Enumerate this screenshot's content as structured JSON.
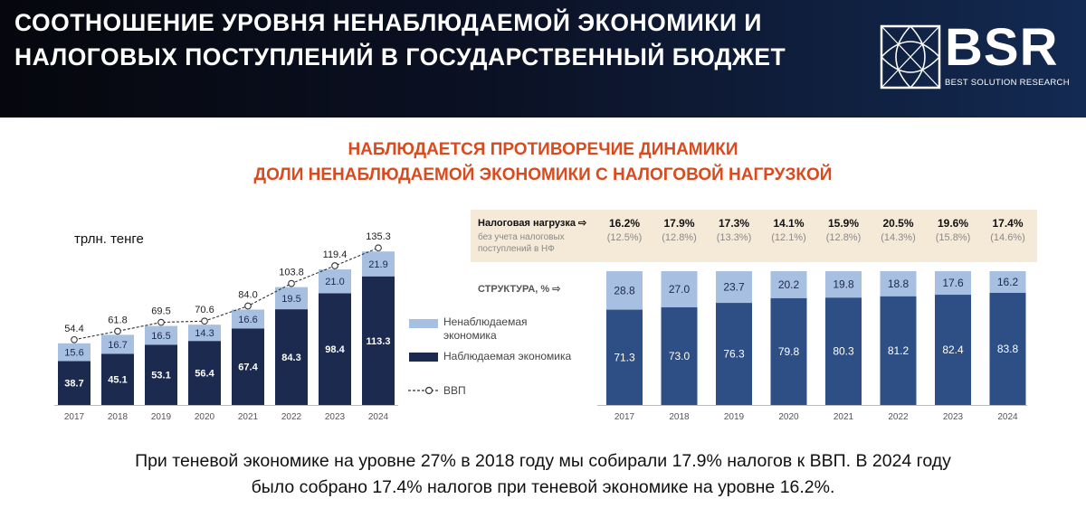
{
  "header": {
    "title": "СООТНОШЕНИЕ УРОВНЯ НЕНАБЛЮДАЕМОЙ ЭКОНОМИКИ И НАЛОГОВЫХ ПОСТУПЛЕНИЙ В ГОСУДАРСТВЕННЫЙ БЮДЖЕТ",
    "logo_text": "BSR",
    "logo_sub": "BEST SOLUTION RESEARCH"
  },
  "subtitle": {
    "line1": "НАБЛЮДАЕТСЯ ПРОТИВОРЕЧИЕ ДИНАМИКИ",
    "line2": "ДОЛИ НЕНАБЛЮДАЕМОЙ ЭКОНОМИКИ С НАЛОГОВОЙ НАГРУЗКОЙ"
  },
  "colors": {
    "dark": "#1b2a4e",
    "light": "#a7bfe0",
    "structure_dark": "#2e4f86",
    "accent": "#d94a1e"
  },
  "chart_data": [
    {
      "type": "bar",
      "units": "трлн. тенге",
      "categories": [
        "2017",
        "2018",
        "2019",
        "2020",
        "2021",
        "2022",
        "2023",
        "2024"
      ],
      "series": [
        {
          "name": "Наблюдаемая экономика",
          "values": [
            38.7,
            45.1,
            53.1,
            56.4,
            67.4,
            84.3,
            98.4,
            113.3
          ]
        },
        {
          "name": "Ненаблюдаемая экономика",
          "values": [
            15.6,
            16.7,
            16.5,
            14.3,
            16.6,
            19.5,
            21.0,
            21.9
          ]
        },
        {
          "name": "ВВП",
          "type": "line",
          "values": [
            54.4,
            61.8,
            69.5,
            70.6,
            84.0,
            103.8,
            119.4,
            135.3
          ]
        }
      ],
      "legend": {
        "shadow": "Ненаблюдаемая экономика",
        "observed": "Наблюдаемая экономика",
        "gdp": "ВВП"
      }
    },
    {
      "type": "bar",
      "title": "СТРУКТУРА, %",
      "categories": [
        "2017",
        "2018",
        "2019",
        "2020",
        "2021",
        "2022",
        "2023",
        "2024"
      ],
      "series": [
        {
          "name": "Наблюдаемая экономика",
          "values": [
            "71.3",
            "73.0",
            "76.3",
            "79.8",
            "80.3",
            "81.2",
            "82.4",
            "83.8"
          ]
        },
        {
          "name": "Ненаблюдаемая экономика",
          "values": [
            "28.8",
            "27.0",
            "23.7",
            "20.2",
            "19.8",
            "18.8",
            "17.6",
            "16.2"
          ]
        }
      ],
      "tax_burden": {
        "label": "Налоговая нагрузка ⇨",
        "sublabel": "без учета налоговых поступлений в НФ",
        "values": [
          "16.2%",
          "17.9%",
          "17.3%",
          "14.1%",
          "15.9%",
          "20.5%",
          "19.6%",
          "17.4%"
        ],
        "sub_values": [
          "(12.5%)",
          "(12.8%)",
          "(13.3%)",
          "(12.1%)",
          "(12.8%)",
          "(14.3%)",
          "(15.8%)",
          "(14.6%)"
        ]
      }
    }
  ],
  "footer": {
    "line1": "При теневой экономике на уровне 27% в 2018 году мы собирали 17.9% налогов к ВВП. В 2024 году",
    "line2": "было собрано 17.4% налогов при теневой экономике на уровне 16.2%."
  }
}
